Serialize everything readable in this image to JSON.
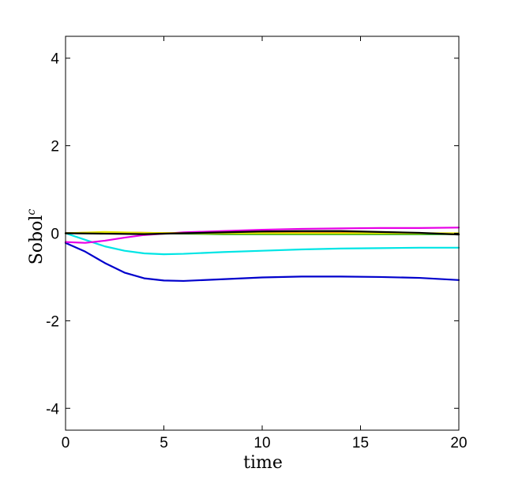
{
  "chart_data": {
    "type": "line",
    "title": "",
    "xlabel": "time",
    "ylabel_base": "Sobol",
    "ylabel_sup": "c",
    "xlim": [
      0,
      20
    ],
    "ylim": [
      -4.5,
      4.5
    ],
    "xticks": [
      0,
      5,
      10,
      15,
      20
    ],
    "xtick_labels": [
      "0",
      "5",
      "10",
      "15",
      "20"
    ],
    "yticks": [
      -4,
      -2,
      0,
      2,
      4
    ],
    "ytick_labels": [
      "-4",
      "-2",
      "0",
      "2",
      "4"
    ],
    "grid": false,
    "legend": "none",
    "series": [
      {
        "color": "#0000cc",
        "x": [
          0,
          1,
          2,
          3,
          4,
          5,
          6,
          8,
          10,
          12,
          14,
          16,
          18,
          20
        ],
        "y": [
          -0.22,
          -0.42,
          -0.68,
          -0.9,
          -1.03,
          -1.08,
          -1.09,
          -1.05,
          -1.01,
          -0.99,
          -0.99,
          -1.0,
          -1.02,
          -1.07
        ]
      },
      {
        "color": "#00e5e5",
        "x": [
          0,
          1,
          2,
          3,
          4,
          5,
          6,
          8,
          10,
          12,
          14,
          16,
          18,
          20
        ],
        "y": [
          0.0,
          -0.15,
          -0.3,
          -0.4,
          -0.46,
          -0.48,
          -0.47,
          -0.43,
          -0.4,
          -0.37,
          -0.35,
          -0.34,
          -0.33,
          -0.33
        ]
      },
      {
        "color": "#e600e6",
        "x": [
          0,
          1,
          2,
          3,
          4,
          5,
          6,
          8,
          10,
          12,
          14,
          16,
          18,
          20
        ],
        "y": [
          -0.2,
          -0.22,
          -0.17,
          -0.1,
          -0.04,
          -0.01,
          0.02,
          0.05,
          0.08,
          0.1,
          0.11,
          0.12,
          0.12,
          0.13
        ]
      },
      {
        "color": "#e60000",
        "x": [
          0,
          2,
          4,
          6,
          8,
          10,
          12,
          14,
          16,
          18,
          20
        ],
        "y": [
          0.0,
          0.02,
          0.01,
          0.0,
          0.0,
          0.01,
          0.01,
          0.01,
          0.0,
          0.0,
          -0.02
        ]
      },
      {
        "color": "#009900",
        "x": [
          0,
          2,
          4,
          6,
          8,
          10,
          12,
          14,
          16,
          18,
          20
        ],
        "y": [
          0.0,
          0.01,
          0.0,
          -0.01,
          -0.02,
          -0.02,
          -0.02,
          -0.02,
          -0.02,
          -0.02,
          -0.02
        ]
      },
      {
        "color": "#e6e600",
        "x": [
          0,
          2,
          4,
          6,
          8,
          10,
          12,
          14,
          16,
          18,
          20
        ],
        "y": [
          0.0,
          0.03,
          0.01,
          0.0,
          0.0,
          0.0,
          0.0,
          0.0,
          0.0,
          0.0,
          0.0
        ]
      },
      {
        "color": "#000000",
        "x": [
          0,
          2,
          4,
          6,
          8,
          10,
          12,
          14,
          16,
          18,
          20
        ],
        "y": [
          0.0,
          -0.01,
          -0.02,
          0.0,
          0.02,
          0.04,
          0.05,
          0.05,
          0.03,
          0.01,
          -0.03
        ]
      }
    ]
  }
}
